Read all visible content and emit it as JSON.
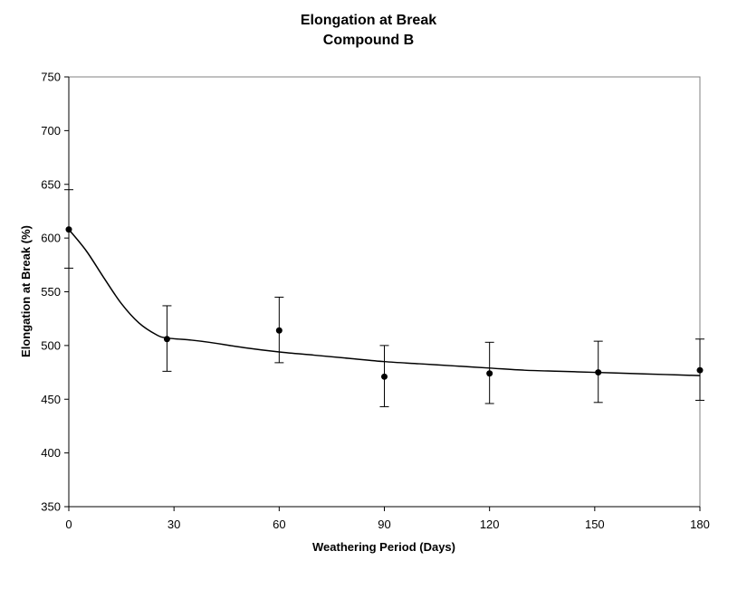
{
  "chart_data": {
    "type": "scatter",
    "title": "Elongation at Break",
    "subtitle": "Compound B",
    "xlabel": "Weathering Period (Days)",
    "ylabel": "Elongation at Break (%)",
    "xlim": [
      0,
      180
    ],
    "ylim": [
      350,
      750
    ],
    "x_ticks": [
      "0",
      "30",
      "60",
      "90",
      "120",
      "150",
      "180"
    ],
    "y_ticks": [
      "350",
      "400",
      "450",
      "500",
      "550",
      "600",
      "650",
      "700",
      "750"
    ],
    "grid": false,
    "legend": "none",
    "series": [
      {
        "points": [
          {
            "x": 0,
            "y": 608,
            "err_low": 572,
            "err_high": 645
          },
          {
            "x": 28,
            "y": 506,
            "err_low": 476,
            "err_high": 537
          },
          {
            "x": 60,
            "y": 514,
            "err_low": 484,
            "err_high": 545
          },
          {
            "x": 90,
            "y": 471,
            "err_low": 443,
            "err_high": 500
          },
          {
            "x": 120,
            "y": 474,
            "err_low": 446,
            "err_high": 503
          },
          {
            "x": 151,
            "y": 475,
            "err_low": 447,
            "err_high": 504
          },
          {
            "x": 180,
            "y": 477,
            "err_low": 449,
            "err_high": 506
          }
        ]
      }
    ],
    "trendline": {
      "x": [
        0,
        5,
        10,
        15,
        20,
        25,
        28,
        35,
        40,
        50,
        60,
        70,
        80,
        90,
        100,
        110,
        120,
        130,
        140,
        150,
        160,
        170,
        180
      ],
      "y": [
        608,
        588,
        563,
        539,
        521,
        510,
        507,
        505,
        503,
        498,
        494,
        491,
        488,
        485,
        483,
        481,
        479,
        477,
        476,
        475,
        474,
        473,
        472
      ]
    },
    "colors": {
      "marker": "#000000",
      "line": "#000000",
      "axis": "#000000"
    }
  }
}
